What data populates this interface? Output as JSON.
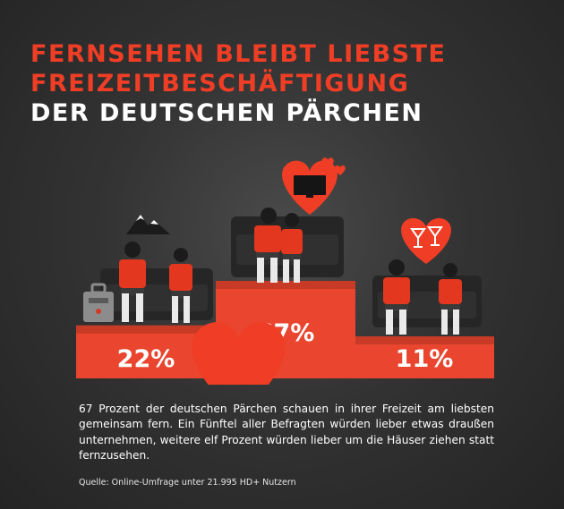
{
  "title": {
    "line1": "FERNSEHEN BLEIBT LIEBSTE",
    "line2": "FREIZEITBESCHÄFTIGUNG",
    "line3": "DER DEUTSCHEN PÄRCHEN"
  },
  "chart_data": {
    "type": "bar",
    "categories": [
      "draußen unternehmen",
      "fernsehen",
      "um die Häuser ziehen"
    ],
    "values": [
      22,
      67,
      11
    ],
    "labels": [
      "22%",
      "67%",
      "11%"
    ],
    "icons": [
      "mountain-heart-icon",
      "tv-heart-icon",
      "cocktail-heart-icon"
    ],
    "colors": {
      "podium": "#e9452f",
      "podium_top": "#c73a26",
      "heart": "#ef3e25",
      "accent_text": "#ef3e25"
    }
  },
  "description": "67 Prozent der deutschen Pärchen schauen in ihrer Freizeit am liebsten gemeinsam fern. Ein Fünftel aller Befragten würden lieber etwas draußen unternehmen, weitere elf Prozent würden lieber um die Häuser ziehen statt fernzusehen.",
  "source": "Quelle: Online-Umfrage unter 21.995 HD+ Nutzern"
}
